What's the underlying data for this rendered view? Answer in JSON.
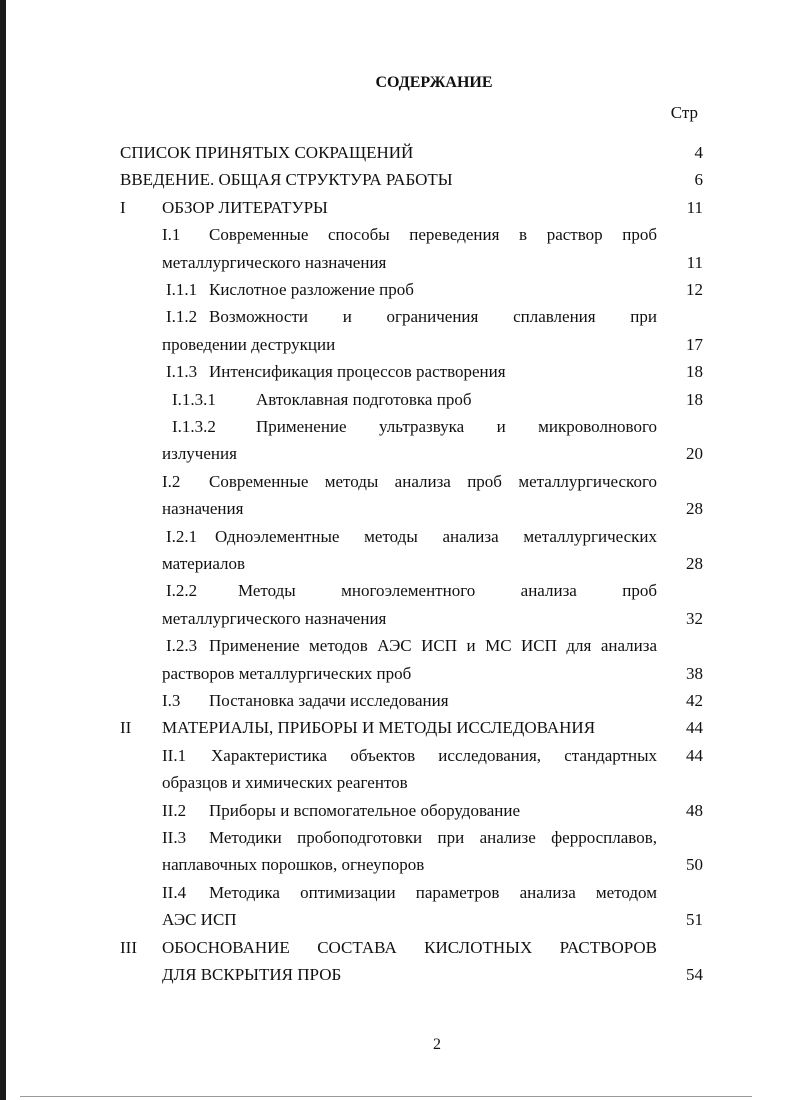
{
  "title": "СОДЕРЖАНИЕ",
  "page_column_label": "Стр",
  "rows": [
    {
      "num": "",
      "text": "СПИСОК ПРИНЯТЫХ СОКРАЩЕНИЙ",
      "page": "4"
    },
    {
      "num": "",
      "text": "ВВЕДЕНИЕ. ОБЩАЯ СТРУКТУРА РАБОТЫ",
      "page": "6"
    },
    {
      "num": "I",
      "text": "ОБЗОР ЛИТЕРАТУРЫ",
      "page": "11"
    },
    {
      "num": "I.1",
      "text": "Современные способы переведения в раствор проб",
      "page": ""
    },
    {
      "num": "",
      "text": "металлургического назначения",
      "page": "11"
    },
    {
      "num": "I.1.1",
      "text": "Кислотное разложение проб",
      "page": "12"
    },
    {
      "num": "I.1.2",
      "text": "Возможности и ограничения сплавления при",
      "page": ""
    },
    {
      "num": "",
      "text": "проведении деструкции",
      "page": "17"
    },
    {
      "num": "I.1.3",
      "text": "Интенсификация процессов растворения",
      "page": "18"
    },
    {
      "num": "I.1.3.1",
      "text": "Автоклавная подготовка проб",
      "page": "18"
    },
    {
      "num": "I.1.3.2",
      "text": "Применение ультразвука и микроволнового",
      "page": ""
    },
    {
      "num": "",
      "text": "излучения",
      "page": "20"
    },
    {
      "num": "I.2",
      "text": "Современные методы анализа проб металлургического",
      "page": ""
    },
    {
      "num": "",
      "text": "назначения",
      "page": "28"
    },
    {
      "num": "I.2.1",
      "text": "Одноэлементные методы анализа металлургических",
      "page": ""
    },
    {
      "num": "",
      "text": "материалов",
      "page": "28"
    },
    {
      "num": "I.2.2",
      "text": "Методы многоэлементного анализа проб",
      "page": ""
    },
    {
      "num": "",
      "text": "металлургического назначения",
      "page": "32"
    },
    {
      "num": "I.2.3",
      "text": "Применение методов АЭС ИСП и МС ИСП для анализа",
      "page": ""
    },
    {
      "num": "",
      "text": "растворов металлургических проб",
      "page": "38"
    },
    {
      "num": "I.3",
      "text": "Постановка задачи исследования",
      "page": "42"
    },
    {
      "num": "II",
      "text": "МАТЕРИАЛЫ, ПРИБОРЫ И МЕТОДЫ ИССЛЕДОВАНИЯ",
      "page": "44"
    },
    {
      "num": "II.1",
      "text": "Характеристика объектов исследования, стандартных",
      "page": "44"
    },
    {
      "num": "",
      "text": "образцов и химических реагентов",
      "page": ""
    },
    {
      "num": "II.2",
      "text": "Приборы и вспомогательное оборудование",
      "page": "48"
    },
    {
      "num": "II.3",
      "text": "Методики пробоподготовки при анализе ферросплавов,",
      "page": ""
    },
    {
      "num": "",
      "text": "наплавочных порошков, огнеупоров",
      "page": "50"
    },
    {
      "num": "II.4",
      "text": "Методика оптимизации параметров анализа методом",
      "page": ""
    },
    {
      "num": "",
      "text": "АЭС ИСП",
      "page": "51"
    },
    {
      "num": "III",
      "text": "ОБОСНОВАНИЕ СОСТАВА КИСЛОТНЫХ РАСТВОРОВ",
      "page": ""
    },
    {
      "num": "",
      "text": "ДЛЯ ВСКРЫТИЯ ПРОБ",
      "page": "54"
    }
  ],
  "page_number": "2"
}
